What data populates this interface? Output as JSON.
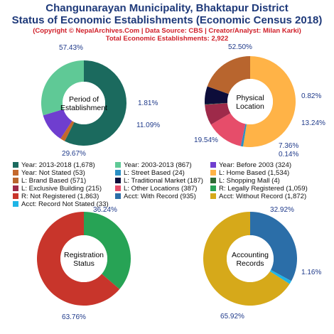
{
  "header": {
    "title_line1": "Changunarayan Municipality, Bhaktapur District",
    "title_line2": "Status of Economic Establishments (Economic Census 2018)",
    "copyright": "(Copyright © NepalArchives.Com | Data Source: CBS | Creator/Analyst: Milan Karki)",
    "total": "Total Economic Establishments: 2,922"
  },
  "chart_data": [
    {
      "type": "pie",
      "title": "Period of Establishment",
      "center_lines": [
        "Period of",
        "Establishment"
      ],
      "slices": [
        {
          "label": "Year: 2013-2018",
          "value": 1678,
          "pct": "57.43%",
          "color": "#1b6a5e"
        },
        {
          "label": "Year: Not Stated",
          "value": 53,
          "pct": "1.81%",
          "color": "#c4682c"
        },
        {
          "label": "Year: Before 2003",
          "value": 324,
          "pct": "11.09%",
          "color": "#6f3ecf"
        },
        {
          "label": "Year: 2003-2013",
          "value": 867,
          "pct": "29.67%",
          "color": "#5fc996"
        }
      ]
    },
    {
      "type": "pie",
      "title": "Physical Location",
      "center_lines": [
        "Physical",
        "Location"
      ],
      "slices": [
        {
          "label": "L: Home Based",
          "value": 1534,
          "pct": "52.50%",
          "color": "#ffb347"
        },
        {
          "label": "L: Street Based",
          "value": 24,
          "pct": "0.82%",
          "color": "#2a8fc4"
        },
        {
          "label": "L: Other Locations",
          "value": 387,
          "pct": "13.24%",
          "color": "#e64d6a"
        },
        {
          "label": "L: Exclusive Building",
          "value": 215,
          "pct": "7.36%",
          "color": "#9e2a4a"
        },
        {
          "label": "L: Shopping Mall",
          "value": 4,
          "pct": "0.14%",
          "color": "#2f6a34"
        },
        {
          "label": "L: Traditional Market",
          "value": 187,
          "pct": "",
          "color": "#0d0d3a"
        },
        {
          "label": "L: Brand Based",
          "value": 571,
          "pct": "19.54%",
          "color": "#b8652e"
        }
      ]
    },
    {
      "type": "pie",
      "title": "Registration Status",
      "center_lines": [
        "Registration",
        "Status"
      ],
      "slices": [
        {
          "label": "R: Legally Registered",
          "value": 1059,
          "pct": "36.24%",
          "color": "#27a355"
        },
        {
          "label": "R: Not Registered",
          "value": 1863,
          "pct": "63.76%",
          "color": "#c8352b"
        }
      ]
    },
    {
      "type": "pie",
      "title": "Accounting Records",
      "center_lines": [
        "Accounting",
        "Records"
      ],
      "slices": [
        {
          "label": "Acct: With Record",
          "value": 935,
          "pct": "32.92%",
          "color": "#2b6ea8"
        },
        {
          "label": "Acct: Record Not Stated",
          "value": 33,
          "pct": "1.16%",
          "color": "#1fb5e6"
        },
        {
          "label": "Acct: Without Record",
          "value": 1872,
          "pct": "65.92%",
          "color": "#d6a91a"
        }
      ]
    }
  ],
  "legend": [
    {
      "text": "Year: 2013-2018 (1,678)",
      "color": "#1b6a5e"
    },
    {
      "text": "Year: 2003-2013 (867)",
      "color": "#5fc996"
    },
    {
      "text": "Year: Before 2003 (324)",
      "color": "#6f3ecf"
    },
    {
      "text": "Year: Not Stated (53)",
      "color": "#c4682c"
    },
    {
      "text": "L: Street Based (24)",
      "color": "#2a8fc4"
    },
    {
      "text": "L: Home Based (1,534)",
      "color": "#ffb347"
    },
    {
      "text": "L: Brand Based (571)",
      "color": "#b8652e"
    },
    {
      "text": "L: Traditional Market (187)",
      "color": "#0d0d3a"
    },
    {
      "text": "L: Shopping Mall (4)",
      "color": "#2f6a34"
    },
    {
      "text": "L: Exclusive Building (215)",
      "color": "#9e2a4a"
    },
    {
      "text": "L: Other Locations (387)",
      "color": "#e64d6a"
    },
    {
      "text": "R: Legally Registered (1,059)",
      "color": "#27a355"
    },
    {
      "text": "R: Not Registered (1,863)",
      "color": "#c8352b"
    },
    {
      "text": "Acct: With Record (935)",
      "color": "#2b6ea8"
    },
    {
      "text": "Acct: Without Record (1,872)",
      "color": "#d6a91a"
    },
    {
      "text": "Acct: Record Not Stated (33)",
      "color": "#1fb5e6"
    }
  ]
}
